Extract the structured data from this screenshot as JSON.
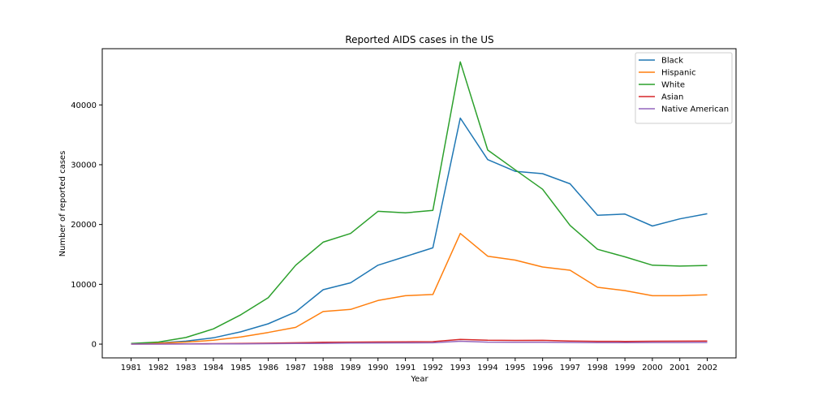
{
  "chart_data": {
    "type": "line",
    "title": "Reported AIDS cases in the US",
    "xlabel": "Year",
    "ylabel": "Number of reported cases",
    "x": [
      1981,
      1982,
      1983,
      1984,
      1985,
      1986,
      1987,
      1988,
      1989,
      1990,
      1991,
      1992,
      1993,
      1994,
      1995,
      1996,
      1997,
      1998,
      1999,
      2000,
      2001,
      2002
    ],
    "xlim": [
      1979.95,
      2003.05
    ],
    "ylim": [
      -2300,
      49400
    ],
    "yticks": [
      0,
      10000,
      20000,
      30000,
      40000
    ],
    "legend_position": "top-right",
    "grid": false,
    "series": [
      {
        "name": "Black",
        "color": "#1f77b4",
        "values": [
          80,
          200,
          500,
          1050,
          2050,
          3400,
          5400,
          9100,
          10250,
          13200,
          14650,
          16100,
          37800,
          30850,
          28900,
          28500,
          26800,
          21550,
          21750,
          19750,
          20950,
          21800
        ]
      },
      {
        "name": "Hispanic",
        "color": "#ff7f0e",
        "values": [
          50,
          150,
          350,
          650,
          1200,
          1950,
          2800,
          5450,
          5800,
          7300,
          8100,
          8300,
          18500,
          14700,
          14050,
          12900,
          12350,
          9500,
          8950,
          8100,
          8100,
          8250
        ]
      },
      {
        "name": "White",
        "color": "#2ca02c",
        "values": [
          100,
          350,
          1100,
          2550,
          4900,
          7750,
          13200,
          17050,
          18500,
          22200,
          21950,
          22350,
          47200,
          32450,
          29150,
          25900,
          19850,
          15850,
          14600,
          13200,
          13050,
          13150
        ]
      },
      {
        "name": "Asian",
        "color": "#d62728",
        "values": [
          10,
          20,
          50,
          80,
          120,
          160,
          230,
          300,
          330,
          360,
          380,
          420,
          780,
          650,
          620,
          630,
          520,
          470,
          460,
          480,
          490,
          510
        ]
      },
      {
        "name": "Native American",
        "color": "#9467bd",
        "values": [
          5,
          10,
          20,
          30,
          50,
          80,
          100,
          130,
          170,
          200,
          210,
          230,
          480,
          330,
          310,
          300,
          280,
          240,
          250,
          270,
          270,
          280
        ]
      }
    ]
  }
}
